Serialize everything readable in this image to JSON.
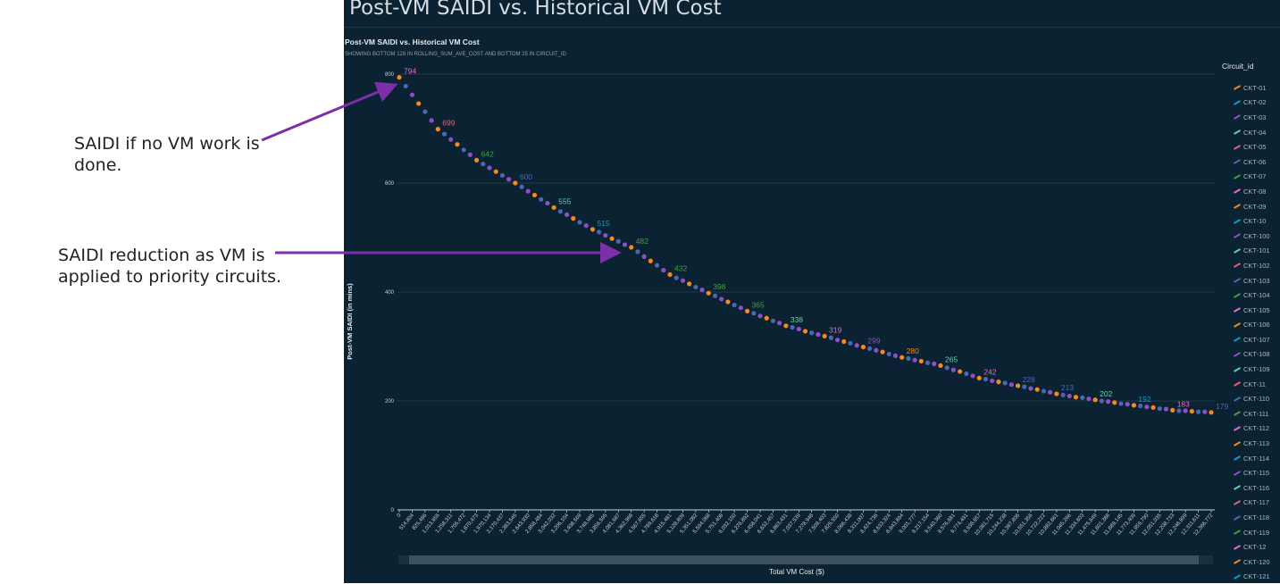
{
  "annotations": [
    {
      "text_lines": [
        "SAIDI if no VM work is",
        "done."
      ]
    },
    {
      "text_lines": [
        "SAIDI reduction as VM is",
        "applied to priority circuits."
      ]
    }
  ],
  "annotation_arrow_color": "#7b2fa8",
  "page_title": "Post-VM SAIDI vs. Historical VM Cost",
  "chart_data": {
    "type": "scatter",
    "title": "Post-VM SAIDI vs. Historical VM Cost",
    "subtitle": "SHOWING BOTTOM 128 IN ROLLING_SUM_AVE_COST AND BOTTOM 25 IN CIRCUIT_ID",
    "xlabel": "Total VM Cost ($)",
    "ylabel": "Post-VM SAIDI (in mins)",
    "ylim": [
      0,
      800
    ],
    "yticks": [
      "0",
      "200",
      "400",
      "600",
      "800"
    ],
    "grid": true,
    "legend_title": "Circuit_id",
    "legend_position": "right",
    "legend": [
      "CKT-01",
      "CKT-02",
      "CKT-03",
      "CKT-04",
      "CKT-05",
      "CKT-06",
      "CKT-07",
      "CKT-08",
      "CKT-09",
      "CKT-10",
      "CKT-100",
      "CKT-101",
      "CKT-102",
      "CKT-103",
      "CKT-104",
      "CKT-105",
      "CKT-106",
      "CKT-107",
      "CKT-108",
      "CKT-109",
      "CKT-11",
      "CKT-110",
      "CKT-111",
      "CKT-112",
      "CKT-113",
      "CKT-114",
      "CKT-115",
      "CKT-116",
      "CKT-117",
      "CKT-118",
      "CKT-119",
      "CKT-12",
      "CKT-120",
      "CKT-121"
    ],
    "palette": [
      "#f5891f",
      "#0d9fc9",
      "#8e4fc4",
      "#62d2b0",
      "#ef5d6e",
      "#4a67b5",
      "#3ea33a",
      "#e86cc8"
    ],
    "xtick_labels": [
      "0",
      "514,804",
      "825,486",
      "1,013,955",
      "1,258,311",
      "1,705,472",
      "1,870,473",
      "1,970,134",
      "2,170,437",
      "2,383,545",
      "2,643,930",
      "2,858,484",
      "3,042,032",
      "3,206,104",
      "3,408,569",
      "3,748,985",
      "3,856,595",
      "4,081,687",
      "4,362,968",
      "4,567,655",
      "4,789,618",
      "4,915,481",
      "5,128,809",
      "5,351,082",
      "5,594,068",
      "5,751,408",
      "6,032,150",
      "6,276,892",
      "6,458,041",
      "6,632,457",
      "6,863,431",
      "7,037,539",
      "7,278,948",
      "7,509,403",
      "7,825,550",
      "8,066,438",
      "8,311,007",
      "8,424,736",
      "8,633,324",
      "8,843,894",
      "9,001,777",
      "9,217,154",
      "9,540,360",
      "9,576,681",
      "9,774,491",
      "9,938,657",
      "10,081,715",
      "10,244,238",
      "10,387,806",
      "10,551,356",
      "10,722,222",
      "10,882,661",
      "11,045,266",
      "11,334,603",
      "11,475,649",
      "11,601,388",
      "11,689,145",
      "11,773,409",
      "11,959,790",
      "12,051,035",
      "12,208,733",
      "12,248,899",
      "12,311,611",
      "12,366,772"
    ],
    "values": [
      794,
      778,
      762,
      746,
      731,
      715,
      699,
      690,
      680,
      671,
      661,
      652,
      642,
      635,
      628,
      621,
      614,
      607,
      600,
      593,
      585,
      578,
      570,
      563,
      555,
      548,
      542,
      535,
      528,
      522,
      515,
      510,
      504,
      498,
      493,
      487,
      482,
      474,
      465,
      457,
      449,
      440,
      432,
      426,
      421,
      415,
      409,
      404,
      398,
      393,
      387,
      382,
      376,
      371,
      365,
      361,
      356,
      352,
      347,
      343,
      338,
      335,
      332,
      328,
      325,
      322,
      319,
      316,
      312,
      309,
      306,
      302,
      299,
      296,
      293,
      290,
      286,
      283,
      280,
      278,
      275,
      273,
      270,
      268,
      265,
      261,
      257,
      254,
      250,
      246,
      242,
      240,
      237,
      235,
      233,
      230,
      228,
      226,
      223,
      221,
      218,
      216,
      213,
      211,
      209,
      207,
      206,
      204,
      202,
      200,
      199,
      197,
      195,
      194,
      192,
      191,
      189,
      188,
      186,
      185,
      183,
      182,
      182,
      181,
      180,
      180,
      179
    ],
    "data_labels": [
      {
        "index": 0,
        "text": "794",
        "color": "#e86cc8"
      },
      {
        "index": 6,
        "text": "699",
        "color": "#ef5d6e"
      },
      {
        "index": 12,
        "text": "642",
        "color": "#3ea33a"
      },
      {
        "index": 18,
        "text": "600",
        "color": "#4a67b5"
      },
      {
        "index": 24,
        "text": "555",
        "color": "#62d2b0"
      },
      {
        "index": 30,
        "text": "515",
        "color": "#0d9fc9"
      },
      {
        "index": 36,
        "text": "482",
        "color": "#3ea33a"
      },
      {
        "index": 42,
        "text": "432",
        "color": "#3ea33a"
      },
      {
        "index": 48,
        "text": "398",
        "color": "#3ea33a"
      },
      {
        "index": 54,
        "text": "365",
        "color": "#3ea33a"
      },
      {
        "index": 60,
        "text": "338",
        "color": "#62d2b0"
      },
      {
        "index": 66,
        "text": "319",
        "color": "#e86cc8"
      },
      {
        "index": 72,
        "text": "299",
        "color": "#8e4fc4"
      },
      {
        "index": 78,
        "text": "280",
        "color": "#f5891f"
      },
      {
        "index": 84,
        "text": "265",
        "color": "#62d2b0"
      },
      {
        "index": 90,
        "text": "242",
        "color": "#e86cc8"
      },
      {
        "index": 96,
        "text": "228",
        "color": "#4a67b5"
      },
      {
        "index": 102,
        "text": "213",
        "color": "#4a67b5"
      },
      {
        "index": 108,
        "text": "202",
        "color": "#62d2b0"
      },
      {
        "index": 114,
        "text": "192",
        "color": "#0d9fc9"
      },
      {
        "index": 120,
        "text": "183",
        "color": "#e86cc8"
      },
      {
        "index": 126,
        "text": "179",
        "color": "#4a67b5"
      }
    ]
  }
}
